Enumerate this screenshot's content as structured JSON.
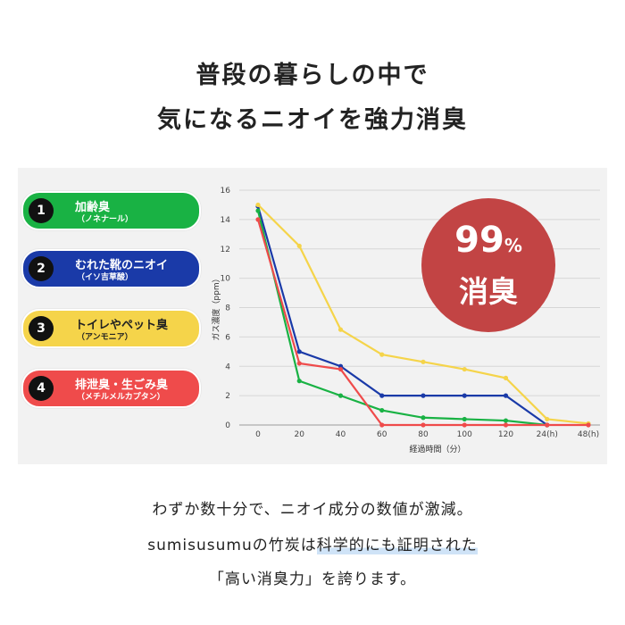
{
  "headline": {
    "line1": "普段の暮らしの中で",
    "line2": "気になるニオイを強力消臭"
  },
  "legend_items": [
    {
      "number": "1",
      "label": "加齢臭",
      "sub": "（ノネナール）",
      "color": "#19b244",
      "text_color": "light"
    },
    {
      "number": "2",
      "label": "むれた靴のニオイ",
      "sub": "（イソ吉草酸）",
      "color": "#1a3aa8",
      "text_color": "light"
    },
    {
      "number": "3",
      "label": "トイレやペット臭",
      "sub": "（アンモニア）",
      "color": "#f5d44a",
      "text_color": "dark"
    },
    {
      "number": "4",
      "label": "排泄臭・生ごみ臭",
      "sub": "（メチルメルカプタン）",
      "color": "#ef4b4b",
      "text_color": "light"
    }
  ],
  "badge": {
    "percent": "99",
    "percent_sign": "%",
    "word": "消臭",
    "color": "#c24444"
  },
  "chart_data": {
    "type": "line",
    "categories": [
      "0",
      "20",
      "40",
      "60",
      "80",
      "100",
      "120",
      "24(h)",
      "48(h)"
    ],
    "ylabel": "ガス濃度（ppm）",
    "xlabel": "経過時間（分）",
    "ylim": [
      0,
      16
    ],
    "yticks": [
      "0",
      "2",
      "4",
      "6",
      "8",
      "10",
      "12",
      "14",
      "16"
    ],
    "grid": "horizontal",
    "series": [
      {
        "color": "#1a3aa8",
        "values": [
          14.9,
          5.0,
          4.0,
          2.0,
          2.0,
          2.0,
          2.0,
          0.0,
          null
        ]
      },
      {
        "color": "#f5d44a",
        "values": [
          15.0,
          12.2,
          6.5,
          4.8,
          4.3,
          3.8,
          3.2,
          0.4,
          0.1
        ]
      },
      {
        "color": "#19b244",
        "values": [
          14.6,
          3.0,
          2.0,
          1.0,
          0.5,
          0.4,
          0.3,
          0.0,
          null
        ]
      },
      {
        "color": "#ef4b4b",
        "values": [
          14.0,
          4.2,
          3.8,
          0.0,
          0.0,
          0.0,
          0.0,
          0.0,
          0.0
        ]
      }
    ]
  },
  "body": {
    "line1": "わずか数十分で、ニオイ成分の数値が激減。",
    "line2_prefix": "sumisusumuの竹炭は",
    "line2_highlight": "科学的にも証明された",
    "line3": "「高い消臭力」を誇ります。"
  }
}
